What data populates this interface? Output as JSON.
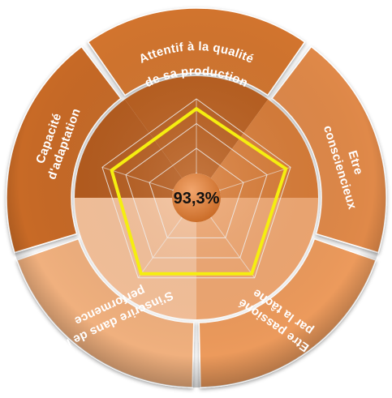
{
  "chart_data": {
    "type": "radar",
    "title": "",
    "center_label": "93,3%",
    "axes": [
      {
        "label_lines": [
          "Attentif à la qualité",
          "de sa production"
        ]
      },
      {
        "label_lines": [
          "Etre",
          "consciencieux"
        ]
      },
      {
        "label_lines": [
          "Etre passioné",
          "par la tâche"
        ]
      },
      {
        "label_lines": [
          "S'inscrire dans de la",
          "performence"
        ]
      },
      {
        "label_lines": [
          "Capacité",
          "d'adaptation"
        ]
      }
    ],
    "scale_max": 100,
    "grid_levels": [
      25,
      50,
      75,
      100
    ],
    "grid": true,
    "series": [
      {
        "values": [
          90,
          95,
          95,
          95,
          90
        ],
        "color": "#f5ee10"
      }
    ]
  },
  "colors": {
    "ring_segments": [
      "#d3742e",
      "#e0894a",
      "#ec9a5c",
      "#f0b07e",
      "#c86b27"
    ],
    "inner_segments": [
      "#b95d1c",
      "#d87b36",
      "#f0a771",
      "#f6c19a",
      "#b55a1b"
    ],
    "center": "#de8140",
    "grid": "#eeeeee",
    "label": "#ffffff"
  }
}
